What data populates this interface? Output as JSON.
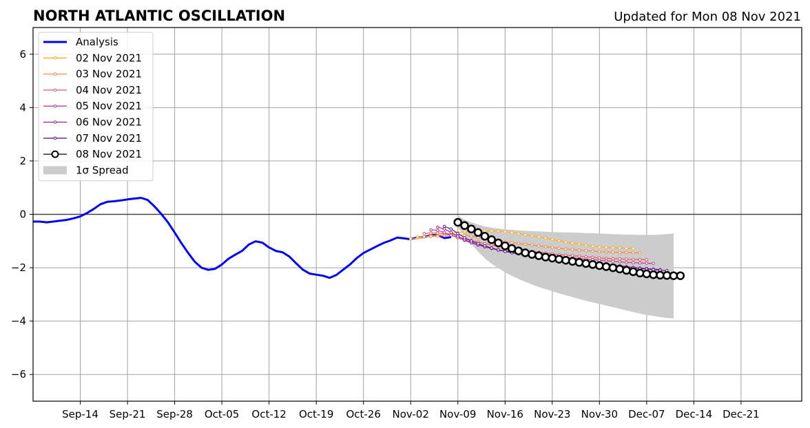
{
  "title": "NORTH ATLANTIC OSCILLATION",
  "updated": "Updated for Mon 08 Nov 2021",
  "chart_data": {
    "type": "line",
    "title": "NORTH ATLANTIC OSCILLATION",
    "xlabel": "",
    "ylabel": "",
    "x_start_date": "2021-09-07",
    "xlim": [
      "2021-09-07",
      "2021-12-30"
    ],
    "ylim": [
      -7,
      7
    ],
    "yticks": [
      -6,
      -4,
      -2,
      0,
      2,
      4,
      6
    ],
    "ytick_labels": [
      "−6",
      "−4",
      "−2",
      "0",
      "2",
      "4",
      "6"
    ],
    "xtick_labels": [
      "Sep-14",
      "Sep-21",
      "Sep-28",
      "Oct-05",
      "Oct-12",
      "Oct-19",
      "Oct-26",
      "Nov-02",
      "Nov-09",
      "Nov-16",
      "Nov-23",
      "Nov-30",
      "Dec-07",
      "Dec-14",
      "Dec-21"
    ],
    "xtick_dates": [
      "2021-09-14",
      "2021-09-21",
      "2021-09-28",
      "2021-10-05",
      "2021-10-12",
      "2021-10-19",
      "2021-10-26",
      "2021-11-02",
      "2021-11-09",
      "2021-11-16",
      "2021-11-23",
      "2021-11-30",
      "2021-12-07",
      "2021-12-14",
      "2021-12-21"
    ],
    "grid": true,
    "legend_position": "upper-left",
    "zero_line": true,
    "series": [
      {
        "name": "Analysis",
        "color": "#0000ee",
        "marker": "none",
        "dates": [
          "2021-09-07",
          "2021-09-08",
          "2021-09-09",
          "2021-09-10",
          "2021-09-11",
          "2021-09-12",
          "2021-09-13",
          "2021-09-14",
          "2021-09-15",
          "2021-09-16",
          "2021-09-17",
          "2021-09-18",
          "2021-09-19",
          "2021-09-20",
          "2021-09-21",
          "2021-09-22",
          "2021-09-23",
          "2021-09-24",
          "2021-09-25",
          "2021-09-26",
          "2021-09-27",
          "2021-09-28",
          "2021-09-29",
          "2021-09-30",
          "2021-10-01",
          "2021-10-02",
          "2021-10-03",
          "2021-10-04",
          "2021-10-05",
          "2021-10-06",
          "2021-10-07",
          "2021-10-08",
          "2021-10-09",
          "2021-10-10",
          "2021-10-11",
          "2021-10-12",
          "2021-10-13",
          "2021-10-14",
          "2021-10-15",
          "2021-10-16",
          "2021-10-17",
          "2021-10-18",
          "2021-10-19",
          "2021-10-20",
          "2021-10-21",
          "2021-10-22",
          "2021-10-23",
          "2021-10-24",
          "2021-10-25",
          "2021-10-26",
          "2021-10-27",
          "2021-10-28",
          "2021-10-29",
          "2021-10-30",
          "2021-10-31",
          "2021-11-01",
          "2021-11-02",
          "2021-11-03",
          "2021-11-04",
          "2021-11-05",
          "2021-11-06",
          "2021-11-07",
          "2021-11-08"
        ],
        "values": [
          -0.27,
          -0.27,
          -0.3,
          -0.27,
          -0.24,
          -0.21,
          -0.15,
          -0.08,
          0.05,
          0.2,
          0.38,
          0.47,
          0.49,
          0.52,
          0.56,
          0.59,
          0.62,
          0.54,
          0.3,
          0.02,
          -0.3,
          -0.68,
          -1.08,
          -1.45,
          -1.78,
          -2.0,
          -2.08,
          -2.04,
          -1.88,
          -1.66,
          -1.51,
          -1.37,
          -1.13,
          -1.01,
          -1.06,
          -1.24,
          -1.37,
          -1.42,
          -1.58,
          -1.83,
          -2.07,
          -2.22,
          -2.26,
          -2.3,
          -2.38,
          -2.27,
          -2.07,
          -1.88,
          -1.64,
          -1.45,
          -1.32,
          -1.19,
          -1.07,
          -0.98,
          -0.87,
          -0.9,
          -0.93,
          -0.87,
          -0.85,
          -0.78,
          -0.77,
          -0.89,
          -0.85
        ]
      },
      {
        "name": "02 Nov 2021",
        "color": "#fbb02d",
        "marker": "small",
        "start": "2021-11-02",
        "values": [
          -0.92,
          -0.9,
          -0.85,
          -0.8,
          -0.78,
          -0.74,
          -0.7,
          -0.68,
          -0.66,
          -0.64,
          -0.63,
          -0.62,
          -0.62,
          -0.63,
          -0.65,
          -0.68,
          -0.72,
          -0.76,
          -0.8,
          -0.85,
          -0.89,
          -0.94,
          -0.99,
          -1.04,
          -1.08,
          -1.12,
          -1.16,
          -1.2,
          -1.22,
          -1.24,
          -1.25,
          -1.26,
          -1.27,
          -1.28
        ]
      },
      {
        "name": "03 Nov 2021",
        "color": "#f1894a",
        "marker": "small",
        "start": "2021-11-03",
        "values": [
          -0.85,
          -0.84,
          -0.83,
          -0.82,
          -0.8,
          -0.77,
          -0.76,
          -0.78,
          -0.82,
          -0.86,
          -0.9,
          -0.94,
          -0.98,
          -1.02,
          -1.06,
          -1.09,
          -1.12,
          -1.15,
          -1.18,
          -1.21,
          -1.24,
          -1.27,
          -1.3,
          -1.32,
          -1.34,
          -1.36,
          -1.38,
          -1.4,
          -1.41,
          -1.42,
          -1.43,
          -1.43,
          -1.44,
          -1.44
        ]
      },
      {
        "name": "04 Nov 2021",
        "color": "#de5a66",
        "marker": "small",
        "start": "2021-11-04",
        "values": [
          -0.72,
          -0.7,
          -0.7,
          -0.72,
          -0.78,
          -0.85,
          -0.92,
          -0.98,
          -1.04,
          -1.1,
          -1.15,
          -1.2,
          -1.24,
          -1.28,
          -1.32,
          -1.36,
          -1.39,
          -1.42,
          -1.45,
          -1.48,
          -1.51,
          -1.53,
          -1.55,
          -1.57,
          -1.59,
          -1.61,
          -1.63,
          -1.65,
          -1.66,
          -1.67,
          -1.68,
          -1.69,
          -1.7,
          -1.7
        ]
      },
      {
        "name": "05 Nov 2021",
        "color": "#c13d88",
        "marker": "small",
        "start": "2021-11-05",
        "values": [
          -0.58,
          -0.6,
          -0.68,
          -0.78,
          -0.88,
          -0.98,
          -1.07,
          -1.15,
          -1.22,
          -1.28,
          -1.33,
          -1.37,
          -1.41,
          -1.45,
          -1.48,
          -1.51,
          -1.54,
          -1.56,
          -1.58,
          -1.6,
          -1.62,
          -1.64,
          -1.66,
          -1.68,
          -1.7,
          -1.72,
          -1.74,
          -1.76,
          -1.78,
          -1.8,
          -1.81,
          -1.82,
          -1.83,
          -1.84
        ]
      },
      {
        "name": "06 Nov 2021",
        "color": "#94219b",
        "marker": "small",
        "start": "2021-11-06",
        "values": [
          -0.48,
          -0.55,
          -0.68,
          -0.82,
          -0.95,
          -1.06,
          -1.14,
          -1.22,
          -1.28,
          -1.34,
          -1.39,
          -1.43,
          -1.47,
          -1.5,
          -1.54,
          -1.57,
          -1.6,
          -1.63,
          -1.66,
          -1.69,
          -1.72,
          -1.75,
          -1.78,
          -1.81,
          -1.84,
          -1.87,
          -1.9,
          -1.93,
          -1.96,
          -1.99,
          -2.01,
          -2.03,
          -2.05,
          -2.07
        ]
      },
      {
        "name": "07 Nov 2021",
        "color": "#5b1a8c",
        "marker": "small",
        "start": "2021-11-07",
        "values": [
          -0.45,
          -0.55,
          -0.72,
          -0.88,
          -1.0,
          -1.1,
          -1.18,
          -1.26,
          -1.33,
          -1.39,
          -1.44,
          -1.48,
          -1.52,
          -1.55,
          -1.58,
          -1.61,
          -1.64,
          -1.67,
          -1.7,
          -1.73,
          -1.76,
          -1.79,
          -1.82,
          -1.85,
          -1.88,
          -1.91,
          -1.94,
          -1.97,
          -2.0,
          -2.03,
          -2.05,
          -2.07,
          -2.09,
          -2.11
        ]
      },
      {
        "name": "08 Nov 2021",
        "color": "#000000",
        "marker": "large-open",
        "start": "2021-11-09",
        "values": [
          -0.3,
          -0.42,
          -0.55,
          -0.68,
          -0.82,
          -0.95,
          -1.07,
          -1.18,
          -1.28,
          -1.37,
          -1.44,
          -1.5,
          -1.55,
          -1.6,
          -1.64,
          -1.68,
          -1.72,
          -1.76,
          -1.8,
          -1.84,
          -1.88,
          -1.92,
          -1.96,
          -2.0,
          -2.05,
          -2.1,
          -2.15,
          -2.2,
          -2.23,
          -2.26,
          -2.28,
          -2.29,
          -2.3,
          -2.3
        ]
      }
    ],
    "spread": {
      "name": "1σ Spread",
      "color": "#cccccc",
      "start": "2021-11-09",
      "end": "2021-12-11",
      "upper": [
        -0.05,
        -0.2,
        -0.3,
        -0.38,
        -0.45,
        -0.5,
        -0.53,
        -0.56,
        -0.58,
        -0.6,
        -0.62,
        -0.63,
        -0.64,
        -0.65,
        -0.66,
        -0.67,
        -0.68,
        -0.68,
        -0.69,
        -0.7,
        -0.71,
        -0.72,
        -0.73,
        -0.74,
        -0.75,
        -0.76,
        -0.76,
        -0.77,
        -0.77,
        -0.77,
        -0.76,
        -0.74,
        -0.72
      ],
      "lower": [
        -0.5,
        -0.8,
        -1.1,
        -1.4,
        -1.65,
        -1.85,
        -2.02,
        -2.17,
        -2.3,
        -2.42,
        -2.53,
        -2.63,
        -2.72,
        -2.8,
        -2.88,
        -2.96,
        -3.03,
        -3.1,
        -3.17,
        -3.24,
        -3.3,
        -3.36,
        -3.42,
        -3.48,
        -3.54,
        -3.6,
        -3.66,
        -3.72,
        -3.77,
        -3.81,
        -3.85,
        -3.88,
        -3.9
      ]
    }
  }
}
